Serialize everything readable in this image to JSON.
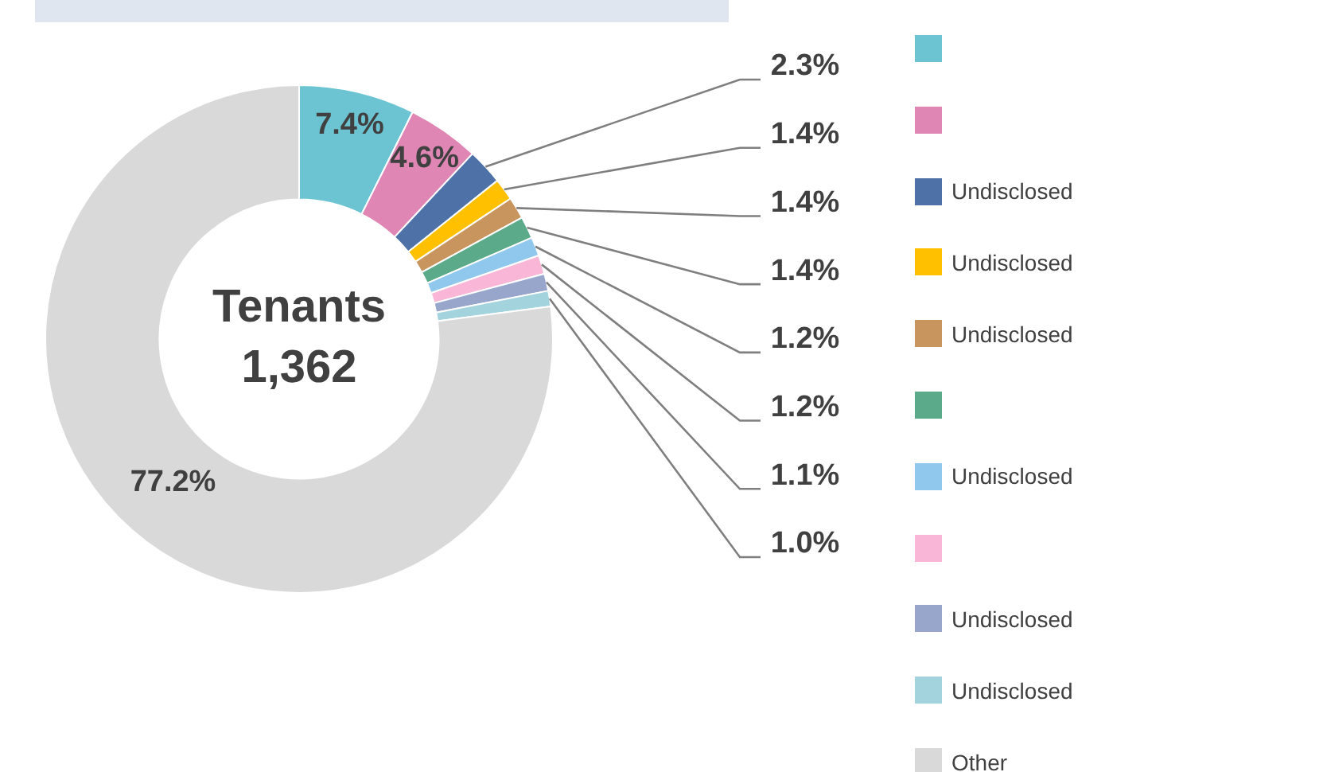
{
  "chart_data": {
    "type": "donut",
    "categories": [
      null,
      null,
      "Undisclosed",
      "Undisclosed",
      "Undisclosed",
      null,
      "Undisclosed",
      null,
      "Undisclosed",
      "Undisclosed",
      "Other"
    ],
    "values": [
      7.4,
      4.6,
      2.3,
      1.4,
      1.4,
      1.4,
      1.2,
      1.2,
      1.1,
      1.0,
      77.2
    ],
    "value_labels": [
      "7.4%",
      "4.6%",
      "2.3%",
      "1.4%",
      "1.4%",
      "1.4%",
      "1.2%",
      "1.2%",
      "1.1%",
      "1.0%",
      "77.2%"
    ],
    "colors": [
      "#6cc4d2",
      "#e086b4",
      "#4e72a8",
      "#ffc000",
      "#c9955f",
      "#5baa8a",
      "#8fc8ec",
      "#f9b6d7",
      "#98a6cc",
      "#a3d3dc",
      "#d9d9d9"
    ],
    "annotations": [
      "Tenants",
      "1,362"
    ],
    "legend": "right"
  }
}
